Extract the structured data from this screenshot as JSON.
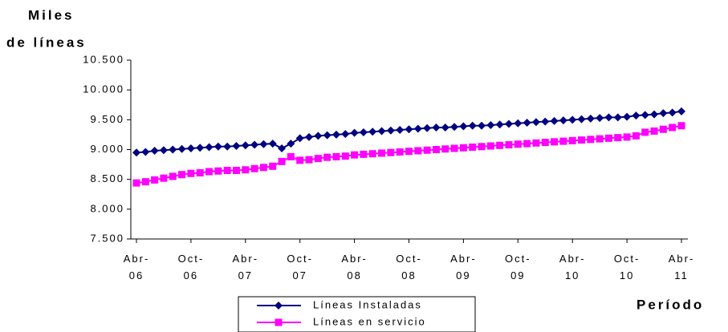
{
  "chart_data": {
    "type": "line",
    "y_label": [
      "Miles",
      "de líneas"
    ],
    "x_label": "Período",
    "categories": [
      "Abr-06",
      null,
      null,
      null,
      null,
      null,
      "Oct-06",
      null,
      null,
      null,
      null,
      null,
      "Abr-07",
      null,
      null,
      null,
      null,
      null,
      "Oct-07",
      null,
      null,
      null,
      null,
      null,
      "Abr-08",
      null,
      null,
      null,
      null,
      null,
      "Oct-08",
      null,
      null,
      null,
      null,
      null,
      "Abr-09",
      null,
      null,
      null,
      null,
      null,
      "Oct-09",
      null,
      null,
      null,
      null,
      null,
      "Abr-10",
      null,
      null,
      null,
      null,
      null,
      "Oct-10",
      null,
      null,
      null,
      null,
      null,
      "Abr-11"
    ],
    "series": [
      {
        "name": "Líneas Instaladas",
        "color": "#000080",
        "marker": "diamond",
        "values": [
          8950,
          8960,
          8980,
          8990,
          9000,
          9010,
          9020,
          9030,
          9040,
          9050,
          9050,
          9060,
          9070,
          9080,
          9090,
          9100,
          9020,
          9100,
          9190,
          9210,
          9230,
          9240,
          9250,
          9260,
          9280,
          9290,
          9300,
          9310,
          9320,
          9330,
          9340,
          9350,
          9360,
          9370,
          9370,
          9380,
          9390,
          9400,
          9400,
          9410,
          9420,
          9430,
          9440,
          9450,
          9460,
          9470,
          9480,
          9490,
          9500,
          9510,
          9520,
          9530,
          9540,
          9540,
          9550,
          9570,
          9580,
          9590,
          9610,
          9620,
          9640
        ]
      },
      {
        "name": "Líneas en servicio",
        "color": "#ff00ff",
        "marker": "square",
        "values": [
          8440,
          8460,
          8490,
          8520,
          8550,
          8580,
          8600,
          8610,
          8630,
          8640,
          8650,
          8650,
          8660,
          8680,
          8700,
          8720,
          8800,
          8880,
          8820,
          8830,
          8850,
          8870,
          8880,
          8890,
          8910,
          8920,
          8930,
          8940,
          8950,
          8960,
          8970,
          8980,
          8990,
          9000,
          9010,
          9020,
          9030,
          9040,
          9050,
          9060,
          9070,
          9080,
          9090,
          9100,
          9110,
          9120,
          9130,
          9140,
          9150,
          9160,
          9170,
          9180,
          9190,
          9200,
          9210,
          9230,
          9290,
          9310,
          9340,
          9370,
          9400
        ]
      }
    ],
    "ylim": [
      7500,
      10500
    ],
    "yticks": [
      {
        "value": 7500,
        "label": "7.500"
      },
      {
        "value": 8000,
        "label": "8.000"
      },
      {
        "value": 8500,
        "label": "8.500"
      },
      {
        "value": 9000,
        "label": "9.000"
      },
      {
        "value": 9500,
        "label": "9.500"
      },
      {
        "value": 10000,
        "label": "10.000"
      },
      {
        "value": 10500,
        "label": "10.500"
      }
    ],
    "grid": false
  }
}
